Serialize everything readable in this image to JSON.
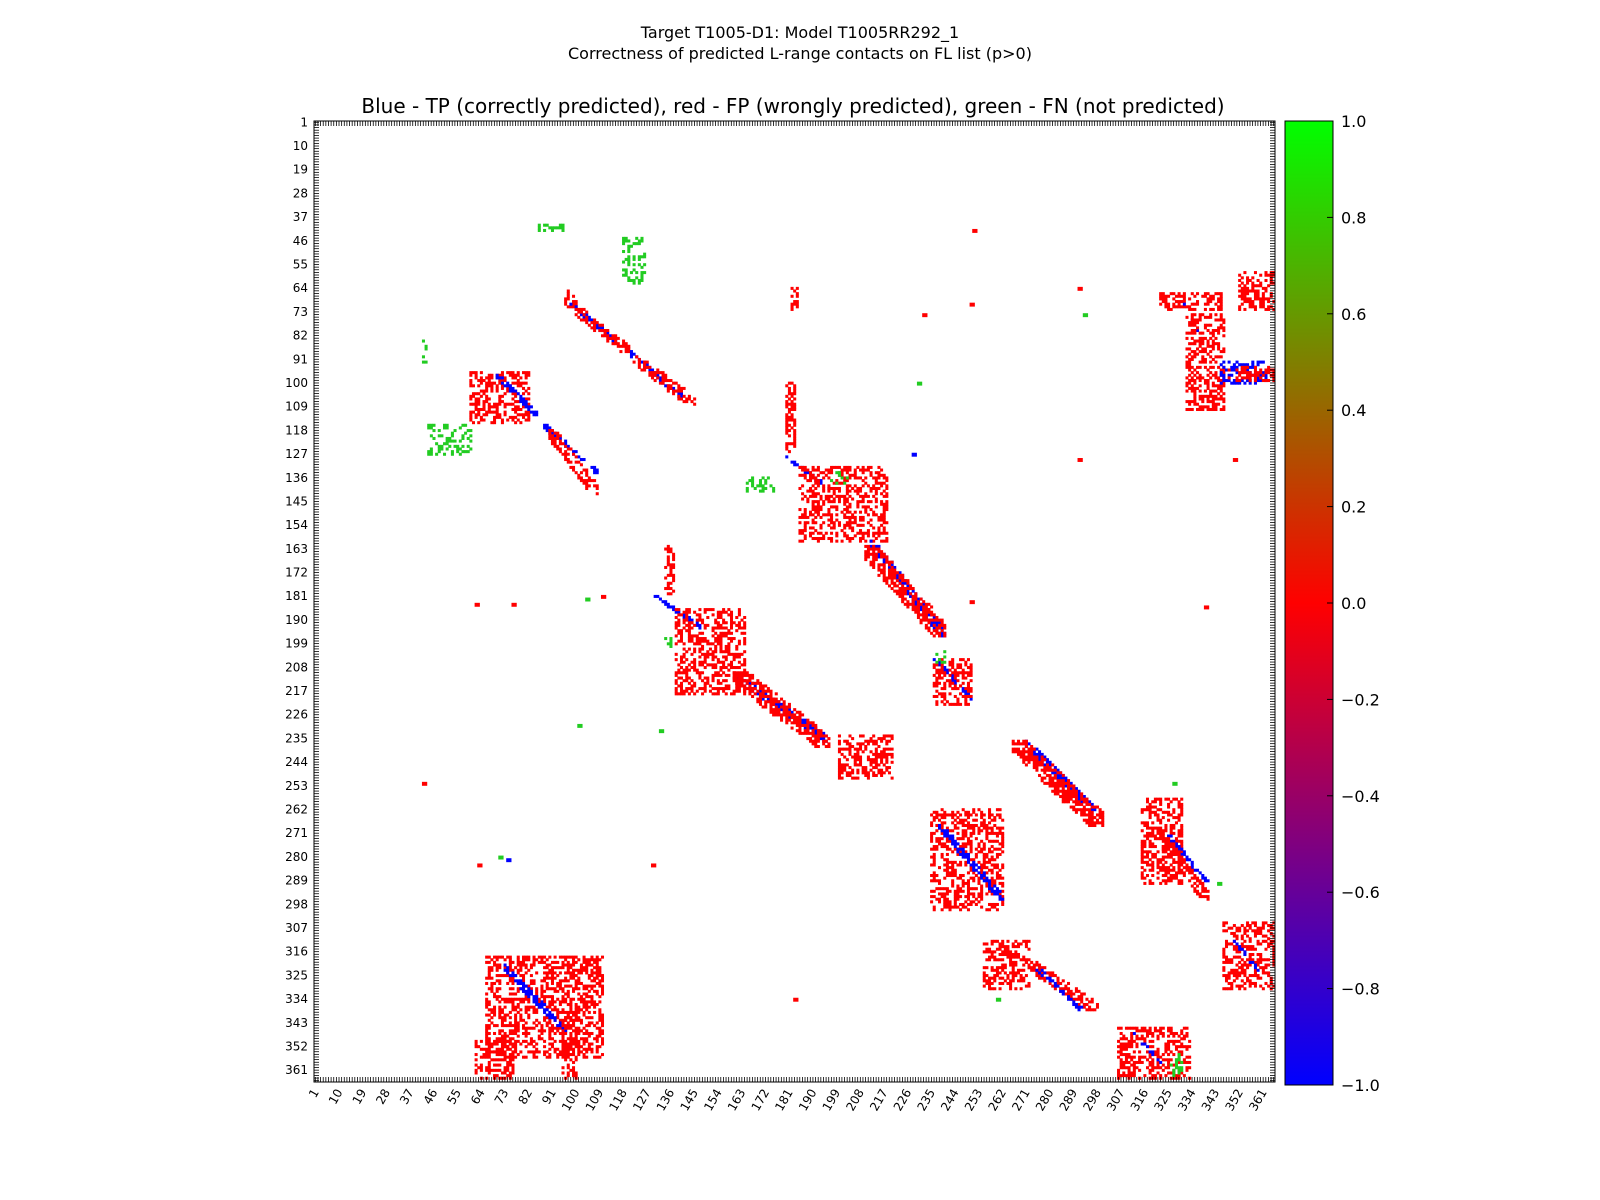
{
  "chart_data": {
    "type": "heatmap",
    "suptitle_line1": "Target T1005-D1: Model T1005RR292_1",
    "suptitle_line2": "Correctness of predicted L-range contacts on FL list (p>0)",
    "title": "Blue - TP (correctly predicted), red - FP (wrongly predicted), green - FN (not predicted)",
    "axis_range": [
      1,
      365
    ],
    "tick_labels": [
      "1",
      "10",
      "19",
      "28",
      "37",
      "46",
      "55",
      "64",
      "73",
      "82",
      "91",
      "100",
      "109",
      "118",
      "127",
      "136",
      "145",
      "154",
      "163",
      "172",
      "181",
      "190",
      "199",
      "208",
      "217",
      "226",
      "235",
      "244",
      "253",
      "262",
      "271",
      "280",
      "289",
      "298",
      "307",
      "316",
      "325",
      "334",
      "343",
      "352",
      "361"
    ],
    "colorbar": {
      "range": [
        -1.0,
        1.0
      ],
      "tick_labels": [
        "1.0",
        "0.8",
        "0.6",
        "0.4",
        "0.2",
        "0.0",
        "−0.2",
        "−0.4",
        "−0.6",
        "−0.8",
        "−1.0"
      ],
      "tick_values": [
        1.0,
        0.8,
        0.6,
        0.4,
        0.2,
        0.0,
        -0.2,
        -0.4,
        -0.6,
        -0.8,
        -1.0
      ],
      "colors": [
        "#0000ff",
        "#ff0000",
        "#00ff00"
      ]
    },
    "category_colors": {
      "TP": "#0000ff",
      "FP": "#ff0000",
      "FN": "#22cc22"
    },
    "clusters": [
      {
        "type": "FP",
        "row": [
          65,
          72
        ],
        "col": [
          96,
          100
        ]
      },
      {
        "type": "TP",
        "row": [
          70,
          84
        ],
        "col": [
          98,
          115
        ],
        "diag": true
      },
      {
        "type": "FP",
        "row": [
          72,
          88
        ],
        "col": [
          100,
          120
        ],
        "diag": true
      },
      {
        "type": "TP",
        "row": [
          88,
          105
        ],
        "col": [
          120,
          140
        ],
        "diag": true
      },
      {
        "type": "FP",
        "row": [
          90,
          108
        ],
        "col": [
          122,
          145
        ],
        "diag": true
      },
      {
        "type": "FN",
        "row": [
          40,
          42
        ],
        "col": [
          86,
          95
        ]
      },
      {
        "type": "FN",
        "row": [
          45,
          62
        ],
        "col": [
          118,
          126
        ]
      },
      {
        "type": "FN",
        "row": [
          84,
          92
        ],
        "col": [
          42,
          43
        ]
      },
      {
        "type": "FN",
        "row": [
          116,
          127
        ],
        "col": [
          44,
          60
        ]
      },
      {
        "type": "FP",
        "row": [
          96,
          115
        ],
        "col": [
          60,
          82
        ]
      },
      {
        "type": "TP",
        "row": [
          97,
          112
        ],
        "col": [
          70,
          85
        ],
        "diag": true
      },
      {
        "type": "TP",
        "row": [
          116,
          134
        ],
        "col": [
          88,
          108
        ],
        "diag": true
      },
      {
        "type": "FP",
        "row": [
          118,
          142
        ],
        "col": [
          90,
          108
        ],
        "diag": true
      },
      {
        "type": "FP",
        "row": [
          64,
          72
        ],
        "col": [
          182,
          184
        ]
      },
      {
        "type": "FP",
        "row": [
          100,
          126
        ],
        "col": [
          180,
          183
        ]
      },
      {
        "type": "TP",
        "row": [
          128,
          140
        ],
        "col": [
          180,
          196
        ],
        "diag": true
      },
      {
        "type": "FP",
        "row": [
          132,
          160
        ],
        "col": [
          185,
          218
        ]
      },
      {
        "type": "FN",
        "row": [
          134,
          138
        ],
        "col": [
          196,
          203
        ]
      },
      {
        "type": "FN",
        "row": [
          136,
          141
        ],
        "col": [
          165,
          175
        ]
      },
      {
        "type": "TP",
        "row": [
          160,
          196
        ],
        "col": [
          212,
          240
        ],
        "diag": true
      },
      {
        "type": "FP",
        "row": [
          162,
          196
        ],
        "col": [
          210,
          240
        ],
        "diag": true
      },
      {
        "type": "FP",
        "row": [
          66,
          72
        ],
        "col": [
          322,
          345
        ]
      },
      {
        "type": "TP",
        "row": [
          68,
          80
        ],
        "col": [
          330,
          336
        ],
        "diag": true
      },
      {
        "type": "FP",
        "row": [
          74,
          110
        ],
        "col": [
          332,
          346
        ]
      },
      {
        "type": "TP",
        "row": [
          92,
          100
        ],
        "col": [
          345,
          362
        ]
      },
      {
        "type": "FP",
        "row": [
          94,
          99
        ],
        "col": [
          348,
          365
        ]
      },
      {
        "type": "FP",
        "row": [
          58,
          72
        ],
        "col": [
          352,
          365
        ]
      },
      {
        "type": "FP",
        "row": [
          162,
          180
        ],
        "col": [
          134,
          137
        ]
      },
      {
        "type": "TP",
        "row": [
          181,
          193
        ],
        "col": [
          130,
          148
        ],
        "diag": true
      },
      {
        "type": "FP",
        "row": [
          186,
          218
        ],
        "col": [
          138,
          164
        ]
      },
      {
        "type": "FN",
        "row": [
          196,
          200
        ],
        "col": [
          134,
          137
        ]
      },
      {
        "type": "TP",
        "row": [
          212,
          236
        ],
        "col": [
          162,
          196
        ],
        "diag": true
      },
      {
        "type": "FP",
        "row": [
          210,
          238
        ],
        "col": [
          160,
          196
        ],
        "diag": true
      },
      {
        "type": "FP",
        "row": [
          234,
          250
        ],
        "col": [
          200,
          220
        ]
      },
      {
        "type": "TP",
        "row": [
          204,
          220
        ],
        "col": [
          236,
          250
        ],
        "diag": true
      },
      {
        "type": "FP",
        "row": [
          205,
          222
        ],
        "col": [
          236,
          250
        ]
      },
      {
        "type": "FN",
        "row": [
          202,
          206
        ],
        "col": [
          236,
          240
        ]
      },
      {
        "type": "TP",
        "row": [
          236,
          262
        ],
        "col": [
          270,
          297
        ],
        "diag": true
      },
      {
        "type": "FP",
        "row": [
          236,
          268
        ],
        "col": [
          266,
          300
        ],
        "diag": true
      },
      {
        "type": "FP",
        "row": [
          262,
          300
        ],
        "col": [
          235,
          262
        ]
      },
      {
        "type": "TP",
        "row": [
          268,
          296
        ],
        "col": [
          238,
          262
        ],
        "diag": true
      },
      {
        "type": "FP",
        "row": [
          258,
          290
        ],
        "col": [
          315,
          330
        ]
      },
      {
        "type": "TP",
        "row": [
          272,
          290
        ],
        "col": [
          325,
          340
        ],
        "diag": true
      },
      {
        "type": "FP",
        "row": [
          272,
          296
        ],
        "col": [
          322,
          340
        ],
        "diag": true
      },
      {
        "type": "FP",
        "row": [
          305,
          330
        ],
        "col": [
          346,
          365
        ]
      },
      {
        "type": "TP",
        "row": [
          312,
          324
        ],
        "col": [
          350,
          360
        ],
        "diag": true
      },
      {
        "type": "FP",
        "row": [
          312,
          330
        ],
        "col": [
          255,
          272
        ]
      },
      {
        "type": "FP",
        "row": [
          320,
          338
        ],
        "col": [
          271,
          298
        ],
        "diag": true
      },
      {
        "type": "TP",
        "row": [
          322,
          338
        ],
        "col": [
          275,
          292
        ],
        "diag": true
      },
      {
        "type": "FP",
        "row": [
          318,
          356
        ],
        "col": [
          66,
          110
        ]
      },
      {
        "type": "TP",
        "row": [
          321,
          346
        ],
        "col": [
          72,
          96
        ],
        "diag": true
      },
      {
        "type": "FP",
        "row": [
          350,
          364
        ],
        "col": [
          62,
          76
        ]
      },
      {
        "type": "FP",
        "row": [
          340,
          364
        ],
        "col": [
          95,
          100
        ]
      },
      {
        "type": "FP",
        "row": [
          345,
          364
        ],
        "col": [
          306,
          333
        ]
      },
      {
        "type": "TP",
        "row": [
          347,
          358
        ],
        "col": [
          312,
          322
        ],
        "diag": true
      },
      {
        "type": "FN",
        "row": [
          355,
          364
        ],
        "col": [
          326,
          330
        ]
      }
    ],
    "points": [
      {
        "type": "FP",
        "row": 42,
        "col": 251
      },
      {
        "type": "FP",
        "row": 252,
        "col": 42
      },
      {
        "type": "FP",
        "row": 184,
        "col": 62
      },
      {
        "type": "FP",
        "row": 184,
        "col": 76
      },
      {
        "type": "FP",
        "row": 185,
        "col": 339
      },
      {
        "type": "FP",
        "row": 129,
        "col": 350
      },
      {
        "type": "FP",
        "row": 129,
        "col": 291
      },
      {
        "type": "FP",
        "row": 283,
        "col": 63
      },
      {
        "type": "FP",
        "row": 283,
        "col": 129
      },
      {
        "type": "FP",
        "row": 334,
        "col": 183
      },
      {
        "type": "FP",
        "row": 64,
        "col": 291
      },
      {
        "type": "FP",
        "row": 70,
        "col": 250
      },
      {
        "type": "FP",
        "row": 74,
        "col": 232
      },
      {
        "type": "FN",
        "row": 74,
        "col": 293
      },
      {
        "type": "FN",
        "row": 100,
        "col": 230
      },
      {
        "type": "TP",
        "row": 127,
        "col": 228
      },
      {
        "type": "FP",
        "row": 183,
        "col": 250
      },
      {
        "type": "FN",
        "row": 182,
        "col": 104
      },
      {
        "type": "FP",
        "row": 181,
        "col": 110
      },
      {
        "type": "FN",
        "row": 230,
        "col": 101
      },
      {
        "type": "FN",
        "row": 232,
        "col": 132
      },
      {
        "type": "TP",
        "row": 281,
        "col": 74
      },
      {
        "type": "FN",
        "row": 280,
        "col": 71
      },
      {
        "type": "FN",
        "row": 252,
        "col": 327
      },
      {
        "type": "FN",
        "row": 290,
        "col": 344
      },
      {
        "type": "FN",
        "row": 334,
        "col": 260
      }
    ]
  }
}
